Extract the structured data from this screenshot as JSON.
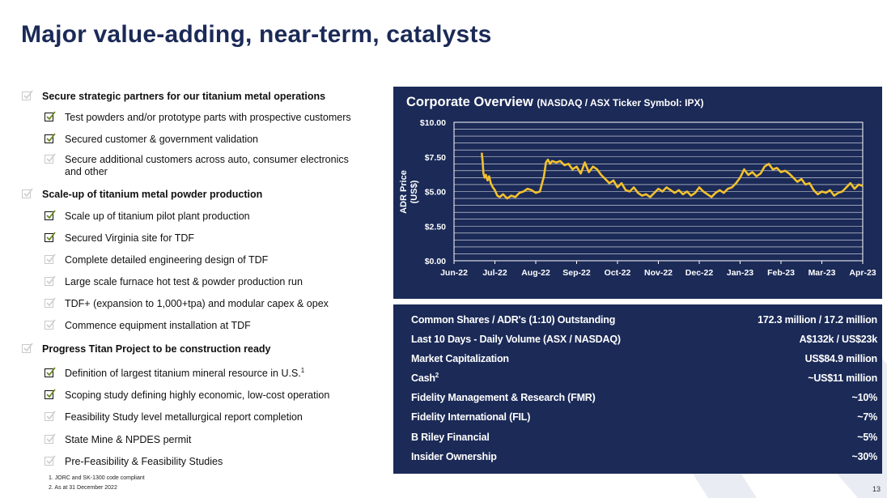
{
  "slide": {
    "title": "Major value-adding, near-term, catalysts",
    "page_number": "13"
  },
  "checklist": {
    "sections": [
      {
        "label": "Secure strategic partners for our titanium metal operations",
        "checked": false,
        "items": [
          {
            "label": "Test powders and/or prototype parts with prospective customers",
            "checked": true
          },
          {
            "label": "Secured customer & government validation",
            "checked": true
          },
          {
            "label": "Secure additional customers across auto, consumer electronics and other",
            "checked": false
          }
        ]
      },
      {
        "label": "Scale-up of titanium metal powder production",
        "checked": false,
        "items": [
          {
            "label": "Scale up of titanium pilot plant production",
            "checked": true
          },
          {
            "label": "Secured Virginia site for TDF",
            "checked": true
          },
          {
            "label": "Complete detailed engineering design of TDF",
            "checked": false
          },
          {
            "label": "Large scale furnace hot test & powder production run",
            "checked": false
          },
          {
            "label": "TDF+ (expansion to 1,000+tpa) and modular capex & opex",
            "checked": false
          },
          {
            "label": "Commence equipment installation at TDF",
            "checked": false
          }
        ]
      },
      {
        "label": "Progress Titan Project to be construction ready",
        "checked": false,
        "items": [
          {
            "label": "Definition of largest titanium mineral resource in U.S.",
            "sup": "1",
            "checked": true
          },
          {
            "label": "Scoping study defining highly economic, low-cost operation",
            "checked": true
          },
          {
            "label": "Feasibility Study level metallurgical report completion",
            "checked": false
          },
          {
            "label": "State Mine & NPDES permit",
            "checked": false
          },
          {
            "label": "Pre-Feasibility & Feasibility Studies",
            "checked": false
          }
        ]
      }
    ]
  },
  "footnotes": [
    "1. JORC and SK-1300 code compliant",
    "2. As at 31 December 2022"
  ],
  "chart_data": {
    "type": "line",
    "title": "Corporate Overview",
    "subtitle": "(NASDAQ / ASX Ticker Symbol: IPX)",
    "ylabel_line1": "ADR Price",
    "ylabel_line2": "(US$)",
    "xlabel": "",
    "ylim": [
      0,
      10
    ],
    "y_ticks": [
      0,
      2.5,
      5,
      7.5,
      10
    ],
    "y_tick_labels": [
      "$0.00",
      "$2.50",
      "$5.00",
      "$7.50",
      "$10.00"
    ],
    "x_tick_labels": [
      "Jun-22",
      "Jul-22",
      "Aug-22",
      "Sep-22",
      "Oct-22",
      "Nov-22",
      "Dec-22",
      "Jan-23",
      "Feb-23",
      "Mar-23",
      "Apr-23"
    ],
    "x_range": [
      0,
      10
    ],
    "series": [
      {
        "name": "ADR Price",
        "color": "#f2c12e",
        "x": [
          0.68,
          0.7,
          0.72,
          0.75,
          0.78,
          0.82,
          0.86,
          0.9,
          0.95,
          1.0,
          1.06,
          1.12,
          1.2,
          1.3,
          1.4,
          1.5,
          1.6,
          1.7,
          1.8,
          1.9,
          2.0,
          2.1,
          2.2,
          2.25,
          2.3,
          2.35,
          2.4,
          2.5,
          2.6,
          2.7,
          2.8,
          2.9,
          3.0,
          3.1,
          3.2,
          3.3,
          3.4,
          3.5,
          3.6,
          3.7,
          3.8,
          3.9,
          4.0,
          4.1,
          4.2,
          4.3,
          4.4,
          4.5,
          4.6,
          4.7,
          4.8,
          4.9,
          5.0,
          5.1,
          5.2,
          5.3,
          5.4,
          5.5,
          5.6,
          5.7,
          5.8,
          5.9,
          6.0,
          6.1,
          6.2,
          6.3,
          6.4,
          6.5,
          6.6,
          6.7,
          6.8,
          6.9,
          7.0,
          7.1,
          7.2,
          7.3,
          7.4,
          7.5,
          7.6,
          7.7,
          7.8,
          7.9,
          8.0,
          8.1,
          8.2,
          8.3,
          8.4,
          8.5,
          8.6,
          8.7,
          8.8,
          8.9,
          9.0,
          9.1,
          9.2,
          9.3,
          9.4,
          9.5,
          9.6,
          9.7,
          9.8,
          9.9,
          10.0
        ],
        "values": [
          7.8,
          7.2,
          6.3,
          6.0,
          6.2,
          5.8,
          6.1,
          5.6,
          5.3,
          5.1,
          4.7,
          4.6,
          4.8,
          4.5,
          4.7,
          4.6,
          4.9,
          5.0,
          5.2,
          5.1,
          4.9,
          5.0,
          6.1,
          7.1,
          7.3,
          7.0,
          7.2,
          7.1,
          7.2,
          6.9,
          7.0,
          6.6,
          6.8,
          6.3,
          7.1,
          6.4,
          6.8,
          6.6,
          6.2,
          5.9,
          5.6,
          5.8,
          5.3,
          5.6,
          5.1,
          5.0,
          5.3,
          4.9,
          4.7,
          4.8,
          4.6,
          4.9,
          5.2,
          5.0,
          5.3,
          5.1,
          4.9,
          5.1,
          4.8,
          5.0,
          4.7,
          4.9,
          5.3,
          5.0,
          4.8,
          4.6,
          4.9,
          5.1,
          4.9,
          5.2,
          5.3,
          5.6,
          6.0,
          6.6,
          6.2,
          6.4,
          6.1,
          6.3,
          6.8,
          7.0,
          6.6,
          6.7,
          6.4,
          6.5,
          6.3,
          6.0,
          5.7,
          5.9,
          5.5,
          5.6,
          5.1,
          4.8,
          5.0,
          4.9,
          5.1,
          4.7,
          4.9,
          5.0,
          5.3,
          5.6,
          5.2,
          5.5,
          5.4
        ]
      }
    ]
  },
  "stats": {
    "rows": [
      {
        "label": "Common Shares / ADR's (1:10) Outstanding",
        "value": "172.3 million / 17.2 million"
      },
      {
        "label": "Last 10 Days - Daily Volume (ASX / NASDAQ)",
        "value": "A$132k / US$23k"
      },
      {
        "label": "Market Capitalization",
        "value": "US$84.9 million"
      },
      {
        "label": "Cash",
        "sup": "2",
        "value": "~US$11 million"
      },
      {
        "label": "Fidelity Management & Research (FMR)",
        "value": "~10%"
      },
      {
        "label": "Fidelity International (FIL)",
        "value": "~7%"
      },
      {
        "label": "B Riley Financial",
        "value": "~5%"
      },
      {
        "label": "Insider Ownership",
        "value": "~30%"
      }
    ]
  },
  "colors": {
    "navy": "#1b2a57",
    "line": "#f2c12e",
    "check": "#6a8a1e"
  }
}
